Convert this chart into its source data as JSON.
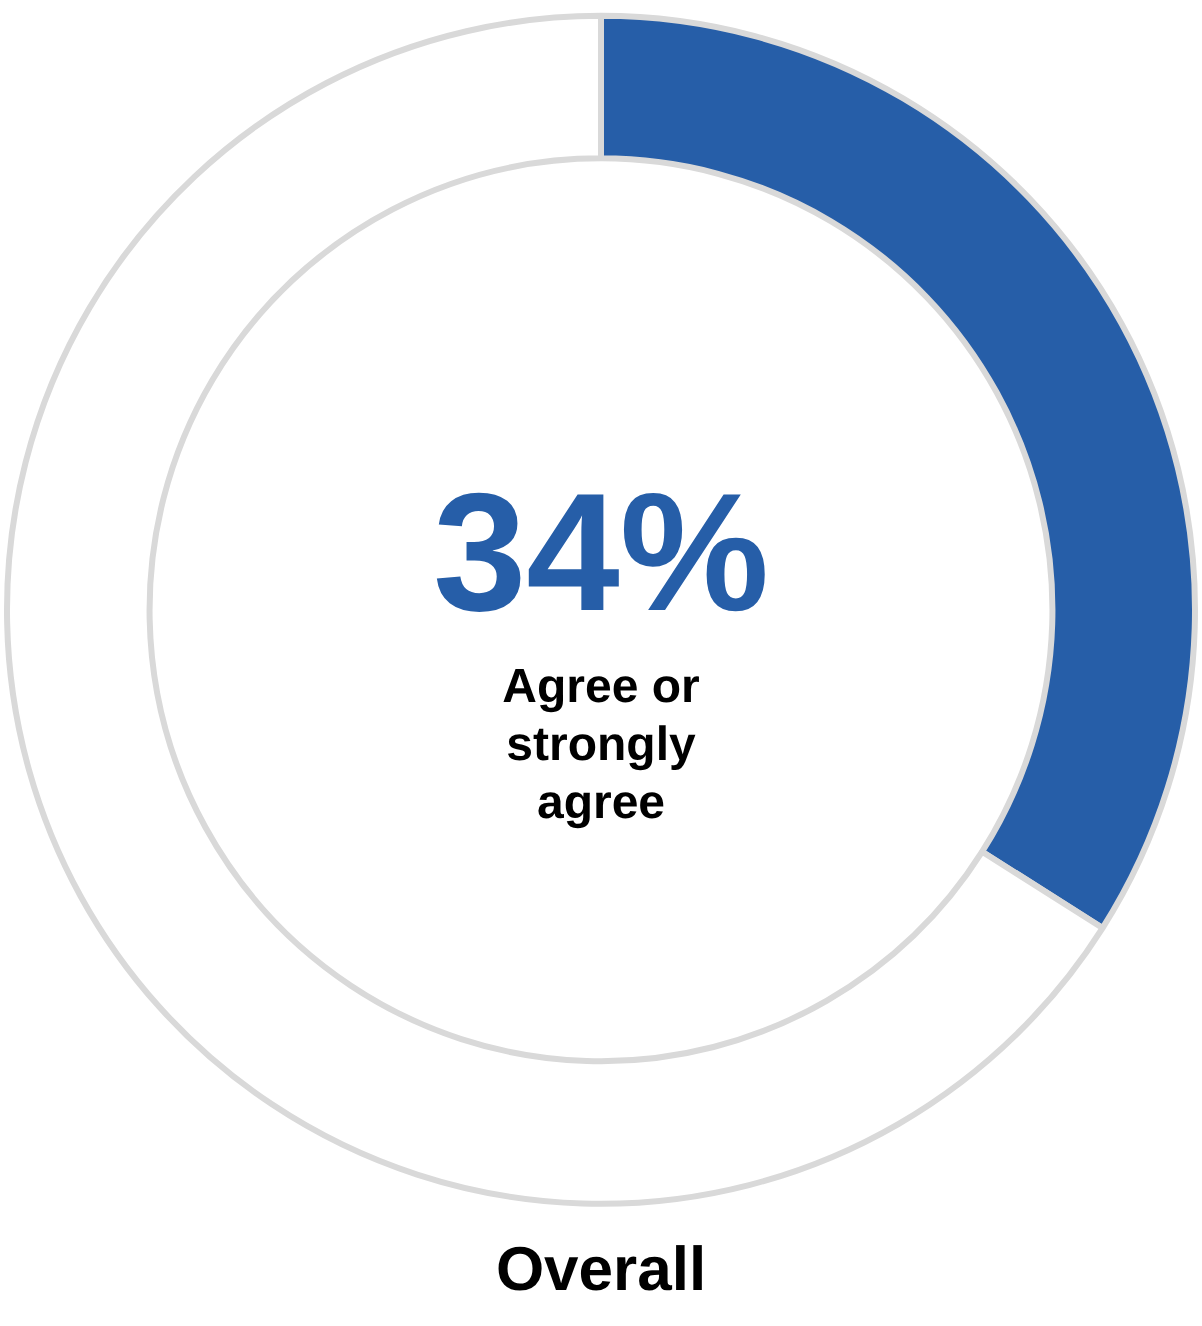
{
  "chart_data": {
    "type": "donut",
    "title": "Overall",
    "categories": [
      "Agree or strongly agree",
      null
    ],
    "values": [
      34,
      66
    ],
    "colors": [
      "#265ea8",
      "#ffffff"
    ],
    "value_labels": [
      "34%",
      null
    ],
    "legend": false
  }
}
